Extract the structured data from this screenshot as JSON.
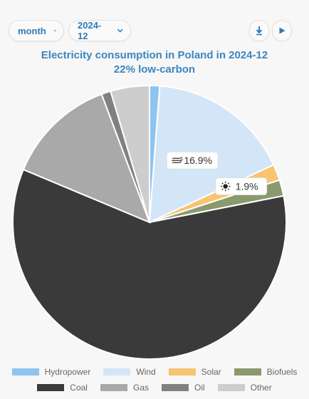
{
  "controls": {
    "period_select": {
      "value": "month"
    },
    "date_select": {
      "value": "2024-12"
    },
    "download_icon": "download-icon",
    "play_icon": "play-icon"
  },
  "chart_data": {
    "type": "pie",
    "title": "Electricity consumption in Poland in 2024-12",
    "subtitle": "22% low-carbon",
    "series": [
      {
        "name": "Hydropower",
        "value": 1.2,
        "color": "#8fc4ef"
      },
      {
        "name": "Wind",
        "value": 16.9,
        "color": "#d2e6f7"
      },
      {
        "name": "Solar",
        "value": 1.9,
        "color": "#f7c46f"
      },
      {
        "name": "Biofuels",
        "value": 1.9,
        "color": "#8a9a6e"
      },
      {
        "name": "Coal",
        "value": 59.4,
        "color": "#3a3a3a"
      },
      {
        "name": "Gas",
        "value": 13.0,
        "color": "#a9a9a9"
      },
      {
        "name": "Oil",
        "value": 1.1,
        "color": "#808080"
      },
      {
        "name": "Other",
        "value": 4.6,
        "color": "#cdcdcd"
      }
    ],
    "data_labels": [
      {
        "series": "Wind",
        "text": "16.9%",
        "icon": "wind-icon"
      },
      {
        "series": "Solar",
        "text": "1.9%",
        "icon": "sun-icon"
      }
    ],
    "legend_placement": "bottom"
  }
}
